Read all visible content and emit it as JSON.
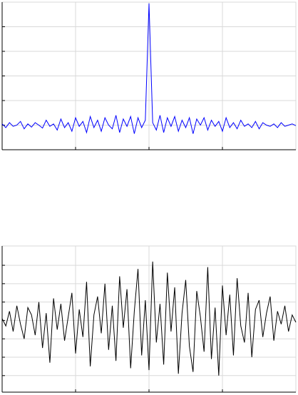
{
  "chart_data": [
    {
      "type": "line",
      "grid": true,
      "xlim": [
        0,
        400
      ],
      "xticks": [
        100,
        200,
        300
      ],
      "ylim": [
        0,
        6
      ],
      "yticks": [
        1,
        2,
        3,
        4,
        5
      ],
      "x": [
        0,
        5,
        10,
        15,
        20,
        25,
        30,
        35,
        40,
        45,
        50,
        55,
        60,
        65,
        70,
        75,
        80,
        85,
        90,
        95,
        100,
        105,
        110,
        115,
        120,
        125,
        130,
        135,
        140,
        145,
        150,
        155,
        160,
        165,
        170,
        175,
        180,
        185,
        190,
        195,
        200,
        205,
        210,
        215,
        220,
        225,
        230,
        235,
        240,
        245,
        250,
        255,
        260,
        265,
        270,
        275,
        280,
        285,
        290,
        295,
        300,
        305,
        310,
        315,
        320,
        325,
        330,
        335,
        340,
        345,
        350,
        355,
        360,
        365,
        370,
        375,
        380,
        385,
        390,
        395,
        400
      ],
      "series": [
        {
          "color": "#0000ff",
          "values": [
            1.05,
            0.9,
            1.1,
            0.95,
            1.0,
            1.15,
            0.85,
            1.05,
            0.92,
            1.1,
            1.0,
            0.88,
            1.2,
            0.95,
            1.05,
            0.8,
            1.25,
            0.9,
            1.1,
            0.75,
            1.3,
            0.95,
            1.15,
            0.7,
            1.35,
            0.9,
            1.2,
            0.75,
            1.3,
            1.0,
            0.85,
            1.4,
            0.7,
            1.25,
            0.95,
            1.35,
            0.65,
            1.3,
            0.9,
            1.2,
            5.95,
            1.1,
            0.8,
            1.4,
            0.7,
            1.3,
            0.95,
            1.35,
            0.75,
            1.2,
            0.9,
            1.3,
            0.65,
            1.25,
            1.0,
            1.3,
            0.8,
            1.2,
            0.95,
            1.15,
            0.75,
            1.3,
            0.9,
            1.1,
            0.85,
            1.2,
            0.95,
            1.05,
            0.9,
            1.15,
            0.85,
            1.1,
            1.0,
            0.95,
            1.05,
            0.9,
            1.1,
            0.95,
            1.0,
            1.05,
            0.98
          ]
        }
      ]
    },
    {
      "type": "line",
      "grid": true,
      "xlim": [
        0,
        400
      ],
      "xticks": [
        100,
        200,
        300
      ],
      "ylim": [
        -3.9,
        4.05
      ],
      "yticks": [
        -3,
        -2,
        -1,
        0,
        1,
        2,
        3
      ],
      "x": [
        0,
        5,
        10,
        15,
        20,
        25,
        30,
        35,
        40,
        45,
        50,
        55,
        60,
        65,
        70,
        75,
        80,
        85,
        90,
        95,
        100,
        105,
        110,
        115,
        120,
        125,
        130,
        135,
        140,
        145,
        150,
        155,
        160,
        165,
        170,
        175,
        180,
        185,
        190,
        195,
        200,
        205,
        210,
        215,
        220,
        225,
        230,
        235,
        240,
        245,
        250,
        255,
        260,
        265,
        270,
        275,
        280,
        285,
        290,
        295,
        300,
        305,
        310,
        315,
        320,
        325,
        330,
        335,
        340,
        345,
        350,
        355,
        360,
        365,
        370,
        375,
        380,
        385,
        390,
        395,
        400
      ],
      "series": [
        {
          "color": "#000000",
          "values": [
            0.1,
            -0.3,
            0.5,
            -0.6,
            0.8,
            -0.2,
            -1.0,
            0.7,
            0.3,
            -0.8,
            1.0,
            -1.5,
            0.4,
            -2.3,
            1.2,
            -0.5,
            0.9,
            -1.1,
            0.2,
            1.5,
            -1.8,
            0.6,
            -0.9,
            2.1,
            -2.5,
            0.3,
            1.3,
            -0.7,
            2.0,
            -1.6,
            0.8,
            -2.2,
            2.4,
            -0.4,
            1.7,
            -2.6,
            0.5,
            2.8,
            -1.9,
            1.1,
            -2.7,
            3.2,
            -1.2,
            0.9,
            -2.4,
            2.6,
            -0.6,
            1.8,
            -2.9,
            0.4,
            2.2,
            -1.4,
            -2.8,
            1.6,
            0.2,
            -1.7,
            2.9,
            -2.1,
            0.7,
            -3.0,
            1.9,
            -0.8,
            1.4,
            -1.9,
            2.3,
            -0.3,
            -1.2,
            1.5,
            -2.0,
            0.6,
            1.1,
            -0.9,
            0.4,
            1.3,
            -1.1,
            0.5,
            -0.2,
            0.8,
            -0.6,
            0.3,
            -0.1
          ]
        }
      ]
    }
  ]
}
